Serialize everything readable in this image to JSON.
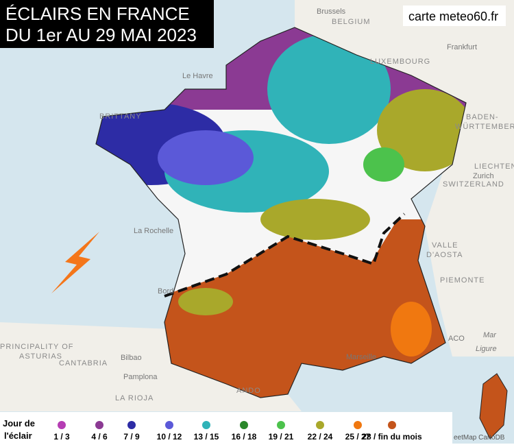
{
  "header": {
    "title_lines": [
      "ÉCLAIRS EN FRANCE",
      "DU 1er AU 29 MAI 2023"
    ],
    "source": "carte meteo60.fr"
  },
  "map": {
    "places": [
      "Brussels",
      "BELGIUM",
      "Frankfurt",
      "LUXEMBOURG",
      "Le Havre",
      "BRITTANY",
      "BADEN-",
      "WÜRTTEMBERG",
      "Zurich",
      "LIECHTEN",
      "SWITZERLAND",
      "La Rochelle",
      "VALLE",
      "D'AOSTA",
      "PIEMONTE",
      "Bord",
      "PRINCIPALITY OF",
      "ASTURIAS",
      "CANTABRIA",
      "Bilbao",
      "Pamplona",
      "LA RIOJA",
      "Marseille",
      "Mar",
      "Ligure",
      "ANDO",
      "ACO"
    ]
  },
  "legend": {
    "title_lines": [
      "Jour de",
      "l'éclair"
    ],
    "items": [
      {
        "label": "1 / 3",
        "color": "#b53db3"
      },
      {
        "label": "4 / 6",
        "color": "#8b3a93"
      },
      {
        "label": "7 / 9",
        "color": "#2d2ca5"
      },
      {
        "label": "10 / 12",
        "color": "#5b59d8"
      },
      {
        "label": "13 / 15",
        "color": "#30b3b8"
      },
      {
        "label": "16 / 18",
        "color": "#2a872a"
      },
      {
        "label": "19 / 21",
        "color": "#4cc24c"
      },
      {
        "label": "22 / 24",
        "color": "#a9a82b"
      },
      {
        "label": "25 / 27",
        "color": "#f07810"
      },
      {
        "label": "28 / fin du mois",
        "color": "#c4541b"
      }
    ]
  },
  "attribution": "eetMap CartoDB"
}
